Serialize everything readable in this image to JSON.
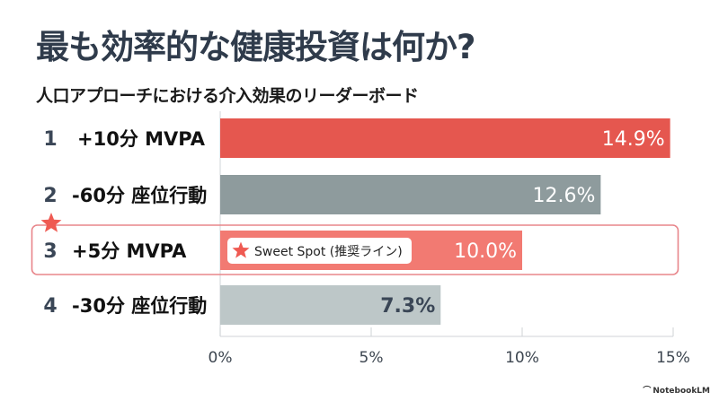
{
  "header": {
    "title": "最も効率的な健康投資は何か?",
    "subtitle": "人口アプローチにおける介入効果のリーダーボード"
  },
  "chart_data": {
    "type": "bar",
    "orientation": "horizontal",
    "title": "最も効率的な健康投資は何か?",
    "subtitle": "人口アプローチにおける介入効果のリーダーボード",
    "ranks": [
      "1",
      "2",
      "3",
      "4"
    ],
    "categories": [
      "+10分 MVPA",
      "-60分 座位行動",
      "+5分 MVPA",
      "-30分 座位行動"
    ],
    "values": [
      14.9,
      12.6,
      10.0,
      7.3
    ],
    "value_labels": [
      "14.9%",
      "12.6%",
      "10.0%",
      "7.3%"
    ],
    "colors": [
      "#e5574f",
      "#8e9b9d",
      "#f27a72",
      "#bdc7c8"
    ],
    "value_label_dark": [
      false,
      false,
      false,
      true
    ],
    "xlim": [
      0,
      15
    ],
    "xticks": [
      0,
      5,
      10,
      15
    ],
    "xtick_labels": [
      "0%",
      "5%",
      "10%",
      "15%"
    ],
    "xlabel": "",
    "ylabel": "",
    "grid": false,
    "highlight": {
      "index": 2,
      "badge_label": "Sweet Spot (推奨ライン)",
      "icon": "star-icon",
      "color": "#e8858a"
    }
  },
  "footer": {
    "brand": "NotebookLM",
    "brand_icon": "notebooklm-logo-icon"
  }
}
